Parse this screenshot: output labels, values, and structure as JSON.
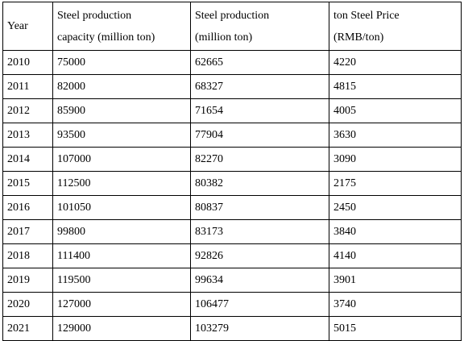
{
  "table": {
    "headers": [
      [
        "Year"
      ],
      [
        "Steel production",
        "capacity (million ton)"
      ],
      [
        "Steel production",
        "(million ton)"
      ],
      [
        "ton Steel Price",
        "(RMB/ton)"
      ]
    ],
    "rows": [
      [
        "2010",
        "75000",
        "62665",
        "4220"
      ],
      [
        "2011",
        "82000",
        "68327",
        "4815"
      ],
      [
        "2012",
        "85900",
        "71654",
        "4005"
      ],
      [
        "2013",
        "93500",
        "77904",
        "3630"
      ],
      [
        "2014",
        "107000",
        "82270",
        "3090"
      ],
      [
        "2015",
        "112500",
        "80382",
        "2175"
      ],
      [
        "2016",
        "101050",
        "80837",
        "2450"
      ],
      [
        "2017",
        "99800",
        "83173",
        "3840"
      ],
      [
        "2018",
        "111400",
        "92826",
        "4140"
      ],
      [
        "2019",
        "119500",
        "99634",
        "3901"
      ],
      [
        "2020",
        "127000",
        "106477",
        "3740"
      ],
      [
        "2021",
        "129000",
        "103279",
        "5015"
      ]
    ]
  }
}
